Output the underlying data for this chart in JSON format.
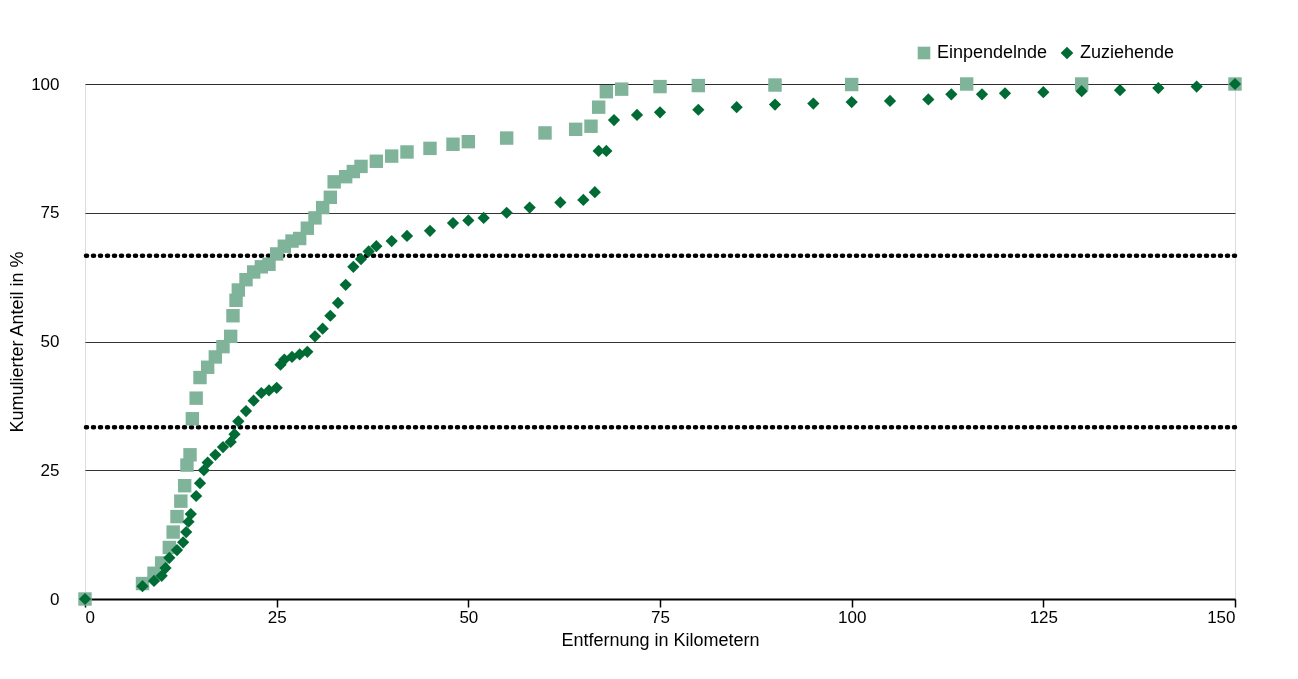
{
  "chart_data": {
    "type": "scatter",
    "xlabel": "Entfernung in Kilometern",
    "ylabel": "Kumulierter Anteil in %",
    "xlim": [
      0,
      150
    ],
    "xticks": [
      0,
      25,
      50,
      75,
      100,
      125,
      150
    ],
    "ylim": [
      0,
      100
    ],
    "yticks": [
      0,
      25,
      50,
      75,
      100
    ],
    "grid": "y",
    "legend": "top right",
    "ref_lines": [
      {
        "axis": "y",
        "value": 66.67,
        "color": "#000000",
        "line_style": "dotted"
      },
      {
        "axis": "y",
        "value": 33.33,
        "color": "#000000",
        "line_style": "dotted"
      }
    ],
    "series": [
      {
        "name": "Einpendelnde",
        "color": "#7fb39a",
        "marker": "square",
        "x": [
          0,
          7.5,
          9,
          10,
          11,
          11.5,
          12,
          12.5,
          13,
          13.3,
          13.7,
          14,
          14.5,
          15,
          16,
          17,
          18,
          19,
          19.3,
          19.7,
          20,
          21,
          22,
          23,
          24,
          25,
          26,
          27,
          28,
          29,
          30,
          31,
          32,
          32.5,
          34,
          35,
          36,
          38,
          40,
          42,
          45,
          48,
          50,
          55,
          60,
          64,
          66,
          67,
          68,
          70,
          75,
          80,
          90,
          100,
          115,
          130,
          150
        ],
        "values": [
          0,
          3,
          5,
          7,
          10,
          13,
          16,
          19,
          22,
          26,
          28,
          35,
          39,
          43,
          45,
          47,
          49,
          51,
          55,
          58,
          60,
          62,
          63.5,
          64.5,
          65,
          67,
          68.5,
          69.5,
          70,
          72,
          74,
          76,
          78,
          81,
          82,
          83,
          84,
          85,
          86,
          86.8,
          87.5,
          88.3,
          88.8,
          89.5,
          90.5,
          91.2,
          91.8,
          95.5,
          98.5,
          99,
          99.5,
          99.7,
          99.8,
          99.9,
          100,
          100,
          100
        ]
      },
      {
        "name": "Zuziehende",
        "color": "#006b35",
        "marker": "diamond",
        "x": [
          0,
          7.5,
          9,
          10,
          10.5,
          11,
          12,
          12.8,
          13.2,
          13.5,
          13.8,
          14.5,
          15,
          15.5,
          16,
          17,
          18,
          19,
          19.5,
          20,
          21,
          22,
          23,
          24,
          25,
          25.5,
          26,
          27,
          28,
          29,
          30,
          31,
          32,
          33,
          34,
          35,
          36,
          37,
          38,
          40,
          42,
          45,
          48,
          50,
          52,
          55,
          58,
          62,
          65,
          66.5,
          67,
          68,
          69,
          72,
          75,
          80,
          85,
          90,
          95,
          100,
          105,
          110,
          113,
          117,
          120,
          125,
          130,
          135,
          140,
          145,
          150
        ],
        "values": [
          0,
          2.5,
          3.5,
          4.5,
          6,
          8,
          9.5,
          11,
          13,
          15,
          16.5,
          20,
          22.5,
          25,
          26.5,
          28,
          29.5,
          30.5,
          32,
          34.5,
          36.5,
          38.5,
          40,
          40.5,
          41,
          45.5,
          46.5,
          47,
          47.5,
          48,
          51,
          52.5,
          55,
          57.5,
          61,
          64.5,
          66,
          67.5,
          68.5,
          69.5,
          70.5,
          71.5,
          73,
          73.5,
          74,
          75,
          76,
          77,
          77.5,
          79,
          87,
          87,
          93,
          94,
          94.5,
          95,
          95.5,
          96,
          96.2,
          96.5,
          96.7,
          97,
          98,
          98,
          98.2,
          98.4,
          98.6,
          98.8,
          99.2,
          99.5,
          100
        ]
      }
    ]
  }
}
